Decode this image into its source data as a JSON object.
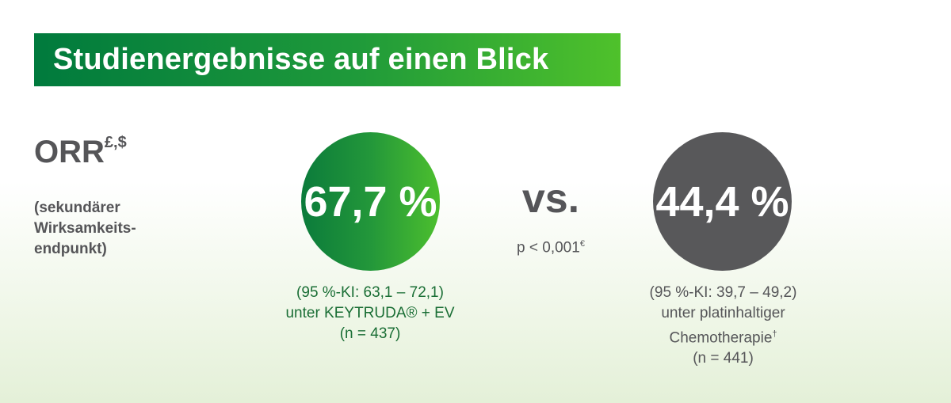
{
  "header": {
    "title": "Studienergebnisse auf einen Blick"
  },
  "metric": {
    "name": "ORR",
    "superscript": "£,$",
    "description": [
      "(sekundärer",
      "Wirksamkeits-",
      "endpunkt)"
    ]
  },
  "comparison": {
    "vs_label": "vs.",
    "p_value": "p < 0,001",
    "p_value_superscript": "€"
  },
  "arm_keytruda": {
    "value": "67,7 %",
    "ci": "(95 %-KI: 63,1 – 72,1)",
    "treatment": "unter KEYTRUDA® + EV",
    "n": "(n = 437)"
  },
  "arm_chemo": {
    "value": "44,4 %",
    "ci": "(95 %-KI: 39,7 – 49,2)",
    "treatment_line1": "unter platinhaltiger",
    "treatment_line2": "Chemotherapie",
    "treatment_line2_superscript": "†",
    "n": "(n = 441)"
  },
  "colors": {
    "brand_green_dark": "#007a3d",
    "brand_green_light": "#4fc12b",
    "grey": "#58585a",
    "text_grey": "#555558"
  }
}
